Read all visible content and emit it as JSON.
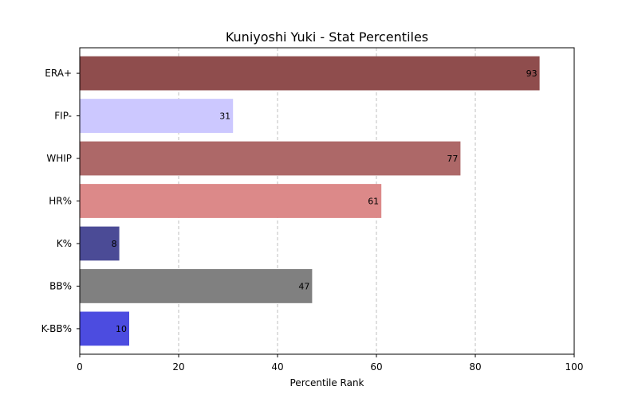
{
  "chart_data": {
    "type": "bar",
    "orientation": "horizontal",
    "title": "Kuniyoshi Yuki - Stat Percentiles",
    "xlabel": "Percentile Rank",
    "ylabel": "",
    "xlim": [
      0,
      100
    ],
    "xticks": [
      0,
      20,
      40,
      60,
      80,
      100
    ],
    "grid": "x-dashed",
    "categories": [
      "ERA+",
      "FIP-",
      "WHIP",
      "HR%",
      "K%",
      "BB%",
      "K-BB%"
    ],
    "values": [
      93,
      31,
      77,
      61,
      8,
      47,
      10
    ],
    "colors": [
      "#8f4d4d",
      "#ccc8ff",
      "#ad6868",
      "#dc8989",
      "#4b4b96",
      "#808080",
      "#4c4ce0"
    ]
  }
}
